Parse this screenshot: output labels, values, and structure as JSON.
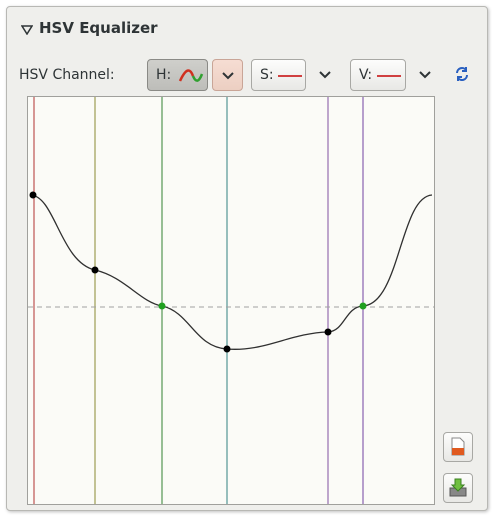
{
  "header": {
    "title": "HSV Equalizer"
  },
  "toolbar": {
    "label": "HSV Channel:",
    "channels": [
      "H:",
      "S:",
      "V:"
    ]
  }
}
